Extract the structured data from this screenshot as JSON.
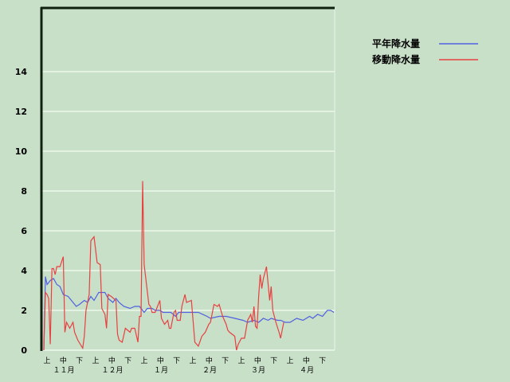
{
  "chart_data": {
    "type": "line",
    "title": "",
    "xlabel": "",
    "ylabel": "",
    "ylim": [
      0,
      17.2
    ],
    "yticks": [
      0,
      2,
      4,
      6,
      8,
      10,
      12,
      14
    ],
    "grid": true,
    "legend_placement": "top-right",
    "months": [
      {
        "month": 11,
        "label": "１１月",
        "days": 30
      },
      {
        "month": 12,
        "label": "１２月",
        "days": 31
      },
      {
        "month": 1,
        "label": "１月",
        "days": 31
      },
      {
        "month": 2,
        "label": "２月",
        "days": 28
      },
      {
        "month": 3,
        "label": "３月",
        "days": 31
      },
      {
        "month": 4,
        "label": "４月",
        "days": 30
      }
    ],
    "dekad_labels": [
      "上",
      "中",
      "下"
    ],
    "series": [
      {
        "name": "平年降水量",
        "color": "#5060e0",
        "points": [
          [
            "11-01",
            0
          ],
          [
            "11-02",
            3.7
          ],
          [
            "11-03",
            3.3
          ],
          [
            "11-05",
            3.5
          ],
          [
            "11-07",
            3.6
          ],
          [
            "11-09",
            3.3
          ],
          [
            "11-11",
            3.2
          ],
          [
            "11-13",
            2.8
          ],
          [
            "11-16",
            2.7
          ],
          [
            "11-18",
            2.5
          ],
          [
            "11-21",
            2.2
          ],
          [
            "11-23",
            2.3
          ],
          [
            "11-26",
            2.5
          ],
          [
            "11-28",
            2.4
          ],
          [
            "11-30",
            2.7
          ],
          [
            "12-02",
            2.5
          ],
          [
            "12-05",
            2.9
          ],
          [
            "12-09",
            2.9
          ],
          [
            "12-11",
            2.6
          ],
          [
            "12-14",
            2.4
          ],
          [
            "12-16",
            2.6
          ],
          [
            "12-18",
            2.4
          ],
          [
            "12-21",
            2.2
          ],
          [
            "12-25",
            2.1
          ],
          [
            "12-28",
            2.2
          ],
          [
            "12-31",
            2.2
          ],
          [
            "01-03",
            1.9
          ],
          [
            "01-05",
            2.1
          ],
          [
            "01-08",
            2.1
          ],
          [
            "01-10",
            2.0
          ],
          [
            "01-13",
            2.0
          ],
          [
            "01-15",
            1.9
          ],
          [
            "01-20",
            1.9
          ],
          [
            "01-23",
            1.7
          ],
          [
            "01-25",
            1.9
          ],
          [
            "01-30",
            1.9
          ],
          [
            "02-02",
            1.9
          ],
          [
            "02-06",
            1.9
          ],
          [
            "02-11",
            1.7
          ],
          [
            "02-13",
            1.6
          ],
          [
            "02-18",
            1.7
          ],
          [
            "02-22",
            1.7
          ],
          [
            "02-27",
            1.6
          ],
          [
            "03-04",
            1.5
          ],
          [
            "03-07",
            1.4
          ],
          [
            "03-11",
            1.5
          ],
          [
            "03-14",
            1.4
          ],
          [
            "03-17",
            1.6
          ],
          [
            "03-20",
            1.5
          ],
          [
            "03-22",
            1.6
          ],
          [
            "03-26",
            1.5
          ],
          [
            "03-28",
            1.5
          ],
          [
            "03-31",
            1.4
          ],
          [
            "04-03",
            1.4
          ],
          [
            "04-07",
            1.6
          ],
          [
            "04-11",
            1.5
          ],
          [
            "04-15",
            1.7
          ],
          [
            "04-17",
            1.6
          ],
          [
            "04-20",
            1.8
          ],
          [
            "04-23",
            1.7
          ],
          [
            "04-26",
            2.0
          ],
          [
            "04-28",
            2.0
          ],
          [
            "04-30",
            1.9
          ]
        ]
      },
      {
        "name": "移動降水量",
        "color": "#e84040",
        "points": [
          [
            "11-01",
            0
          ],
          [
            "11-02",
            2.9
          ],
          [
            "11-03",
            2.8
          ],
          [
            "11-04",
            2.6
          ],
          [
            "11-05",
            0.3
          ],
          [
            "11-06",
            4.1
          ],
          [
            "11-07",
            4.1
          ],
          [
            "11-08",
            3.8
          ],
          [
            "11-09",
            4.2
          ],
          [
            "11-11",
            4.2
          ],
          [
            "11-13",
            4.7
          ],
          [
            "11-14",
            0.9
          ],
          [
            "11-15",
            1.4
          ],
          [
            "11-17",
            1.1
          ],
          [
            "11-19",
            1.4
          ],
          [
            "11-20",
            0.9
          ],
          [
            "11-22",
            0.5
          ],
          [
            "11-25",
            0.1
          ],
          [
            "11-26",
            0.7
          ],
          [
            "11-27",
            2.0
          ],
          [
            "11-29",
            2.8
          ],
          [
            "11-30",
            5.5
          ],
          [
            "12-02",
            5.7
          ],
          [
            "12-04",
            4.4
          ],
          [
            "12-06",
            4.3
          ],
          [
            "12-07",
            2.1
          ],
          [
            "12-09",
            1.8
          ],
          [
            "12-10",
            1.1
          ],
          [
            "12-11",
            2.8
          ],
          [
            "12-13",
            2.7
          ],
          [
            "12-16",
            2.5
          ],
          [
            "12-17",
            0.8
          ],
          [
            "12-18",
            0.5
          ],
          [
            "12-20",
            0.4
          ],
          [
            "12-22",
            1.1
          ],
          [
            "12-25",
            0.9
          ],
          [
            "12-26",
            1.1
          ],
          [
            "12-28",
            1.1
          ],
          [
            "12-30",
            0.4
          ],
          [
            "12-31",
            1.7
          ],
          [
            "01-01",
            1.7
          ],
          [
            "01-02",
            8.5
          ],
          [
            "01-03",
            4.3
          ],
          [
            "01-06",
            2.3
          ],
          [
            "01-07",
            2.2
          ],
          [
            "01-08",
            1.9
          ],
          [
            "01-10",
            1.9
          ],
          [
            "01-13",
            2.5
          ],
          [
            "01-14",
            1.6
          ],
          [
            "01-16",
            1.3
          ],
          [
            "01-18",
            1.5
          ],
          [
            "01-19",
            1.1
          ],
          [
            "01-20",
            1.1
          ],
          [
            "01-22",
            1.9
          ],
          [
            "01-23",
            2.0
          ],
          [
            "01-24",
            1.5
          ],
          [
            "01-26",
            1.5
          ],
          [
            "01-27",
            2.2
          ],
          [
            "01-29",
            2.8
          ],
          [
            "01-30",
            2.4
          ],
          [
            "02-02",
            2.5
          ],
          [
            "02-04",
            0.4
          ],
          [
            "02-06",
            0.2
          ],
          [
            "02-08",
            0.7
          ],
          [
            "02-10",
            0.9
          ],
          [
            "02-12",
            1.3
          ],
          [
            "02-13",
            1.4
          ],
          [
            "02-15",
            2.3
          ],
          [
            "02-17",
            2.2
          ],
          [
            "02-18",
            2.3
          ],
          [
            "02-20",
            1.7
          ],
          [
            "02-22",
            1.3
          ],
          [
            "02-23",
            1.0
          ],
          [
            "02-24",
            0.9
          ],
          [
            "02-27",
            0.7
          ],
          [
            "02-28",
            0.0
          ],
          [
            "03-01",
            0.3
          ],
          [
            "03-03",
            0.6
          ],
          [
            "03-05",
            0.6
          ],
          [
            "03-07",
            1.5
          ],
          [
            "03-09",
            1.8
          ],
          [
            "03-10",
            1.4
          ],
          [
            "03-11",
            2.2
          ],
          [
            "03-12",
            1.2
          ],
          [
            "03-13",
            1.1
          ],
          [
            "03-14",
            2.7
          ],
          [
            "03-15",
            3.8
          ],
          [
            "03-16",
            3.1
          ],
          [
            "03-17",
            3.6
          ],
          [
            "03-19",
            4.2
          ],
          [
            "03-21",
            2.5
          ],
          [
            "03-22",
            3.2
          ],
          [
            "03-23",
            2.0
          ],
          [
            "03-25",
            1.4
          ],
          [
            "03-27",
            0.9
          ],
          [
            "03-28",
            0.6
          ],
          [
            "03-30",
            1.4
          ]
        ]
      }
    ]
  }
}
